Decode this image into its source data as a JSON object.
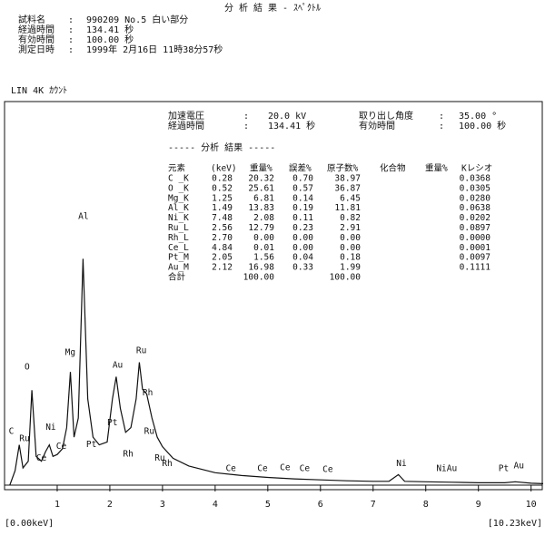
{
  "header": {
    "title": "分 析 結 果 - ｽﾍﾟｸﾄﾙ",
    "info": [
      [
        "試料名",
        ":",
        "990209 No.5 白い部分"
      ],
      [
        "経過時間",
        ":",
        "134.41 秒"
      ],
      [
        "有効時間",
        ":",
        "100.00 秒"
      ],
      [
        "測定日時",
        ":",
        "1999年 2月16日 11時38分57秒"
      ]
    ]
  },
  "scale_label": "LIN   4K  ｶｳﾝﾄ",
  "conditions": {
    "left": [
      [
        "加速電圧",
        ":",
        "20.0 kV"
      ],
      [
        "経過時間",
        ":",
        "134.41 秒"
      ]
    ],
    "right": [
      [
        "取り出し角度",
        ":",
        "35.00 °"
      ],
      [
        "有効時間",
        ":",
        "100.00 秒"
      ]
    ]
  },
  "results": {
    "title": "----- 分析 結果 -----",
    "columns": [
      "元素",
      "(keV)",
      "重量%",
      "誤差%",
      "原子数%",
      "化合物",
      "重量%",
      "Kレシオ"
    ],
    "rows": [
      [
        "C _K",
        "0.28",
        "20.32",
        "0.70",
        "38.97",
        "0.0368"
      ],
      [
        "O _K",
        "0.52",
        "25.61",
        "0.57",
        "36.87",
        "0.0305"
      ],
      [
        "Mg_K",
        "1.25",
        "6.81",
        "0.14",
        "6.45",
        "0.0280"
      ],
      [
        "Al_K",
        "1.49",
        "13.83",
        "0.19",
        "11.81",
        "0.0638"
      ],
      [
        "Ni_K",
        "7.48",
        "2.08",
        "0.11",
        "0.82",
        "0.0202"
      ],
      [
        "Ru_L",
        "2.56",
        "12.79",
        "0.23",
        "2.91",
        "0.0897"
      ],
      [
        "Rh_L",
        "2.70",
        "0.00",
        "0.00",
        "0.00",
        "0.0000"
      ],
      [
        "Ce_L",
        "4.84",
        "0.01",
        "0.00",
        "0.00",
        "0.0001"
      ],
      [
        "Pt_M",
        "2.05",
        "1.56",
        "0.04",
        "0.18",
        "0.0097"
      ],
      [
        "Au_M",
        "2.12",
        "16.98",
        "0.33",
        "1.99",
        "0.1111"
      ]
    ],
    "total": [
      "合計",
      "100.00",
      "100.00"
    ]
  },
  "chart_data": {
    "type": "line",
    "color": "#111111",
    "x": [
      0.1,
      0.2,
      0.28,
      0.35,
      0.45,
      0.52,
      0.6,
      0.7,
      0.78,
      0.85,
      0.92,
      1.0,
      1.1,
      1.18,
      1.25,
      1.32,
      1.4,
      1.49,
      1.58,
      1.68,
      1.8,
      1.95,
      2.05,
      2.12,
      2.2,
      2.3,
      2.4,
      2.5,
      2.56,
      2.62,
      2.7,
      2.8,
      2.9,
      3.0,
      3.2,
      3.5,
      4.0,
      4.5,
      5.0,
      5.5,
      6.0,
      6.5,
      7.0,
      7.3,
      7.48,
      7.6,
      8.0,
      8.5,
      9.0,
      9.5,
      9.7,
      10.0,
      10.23
    ],
    "values": [
      0,
      150,
      420,
      180,
      250,
      990,
      300,
      250,
      350,
      420,
      300,
      320,
      380,
      600,
      1180,
      500,
      700,
      2360,
      900,
      500,
      420,
      450,
      900,
      1130,
      800,
      550,
      600,
      900,
      1280,
      1000,
      950,
      700,
      500,
      400,
      280,
      200,
      130,
      100,
      80,
      65,
      55,
      45,
      40,
      40,
      110,
      40,
      35,
      30,
      25,
      25,
      35,
      20,
      15
    ],
    "xlim": [
      0,
      10.23
    ],
    "ylim": [
      0,
      4000
    ],
    "xticks": [
      1,
      2,
      3,
      4,
      5,
      6,
      7,
      8,
      9,
      10
    ],
    "range_labels": [
      "[0.00keV]",
      "[10.23keV]"
    ],
    "annotations": [
      {
        "text": "C",
        "x": 0.08,
        "y": 560
      },
      {
        "text": "Ru",
        "x": 0.28,
        "y": 480
      },
      {
        "text": "O",
        "x": 0.38,
        "y": 1230
      },
      {
        "text": "Ce",
        "x": 0.6,
        "y": 280
      },
      {
        "text": "Ni",
        "x": 0.78,
        "y": 600
      },
      {
        "text": "Ce",
        "x": 0.98,
        "y": 400
      },
      {
        "text": "Mg",
        "x": 1.15,
        "y": 1380
      },
      {
        "text": "Al",
        "x": 1.4,
        "y": 2800
      },
      {
        "text": "Pt",
        "x": 1.55,
        "y": 420
      },
      {
        "text": "Au",
        "x": 2.05,
        "y": 1250
      },
      {
        "text": "Pt",
        "x": 1.95,
        "y": 650
      },
      {
        "text": "Ru",
        "x": 2.5,
        "y": 1400
      },
      {
        "text": "Rh",
        "x": 2.62,
        "y": 960
      },
      {
        "text": "Ru",
        "x": 2.65,
        "y": 560
      },
      {
        "text": "Rh",
        "x": 2.25,
        "y": 320
      },
      {
        "text": "Ru",
        "x": 2.85,
        "y": 280
      },
      {
        "text": "Rh",
        "x": 2.99,
        "y": 220
      },
      {
        "text": "Ce",
        "x": 4.2,
        "y": 170
      },
      {
        "text": "Ce",
        "x": 4.8,
        "y": 170
      },
      {
        "text": "Ce",
        "x": 5.23,
        "y": 180
      },
      {
        "text": "Ce",
        "x": 5.6,
        "y": 170
      },
      {
        "text": "Ce",
        "x": 6.04,
        "y": 160
      },
      {
        "text": "Ni",
        "x": 7.44,
        "y": 220
      },
      {
        "text": "NiAu",
        "x": 8.2,
        "y": 170
      },
      {
        "text": "Pt",
        "x": 9.38,
        "y": 170
      },
      {
        "text": "Au",
        "x": 9.67,
        "y": 200
      }
    ]
  }
}
